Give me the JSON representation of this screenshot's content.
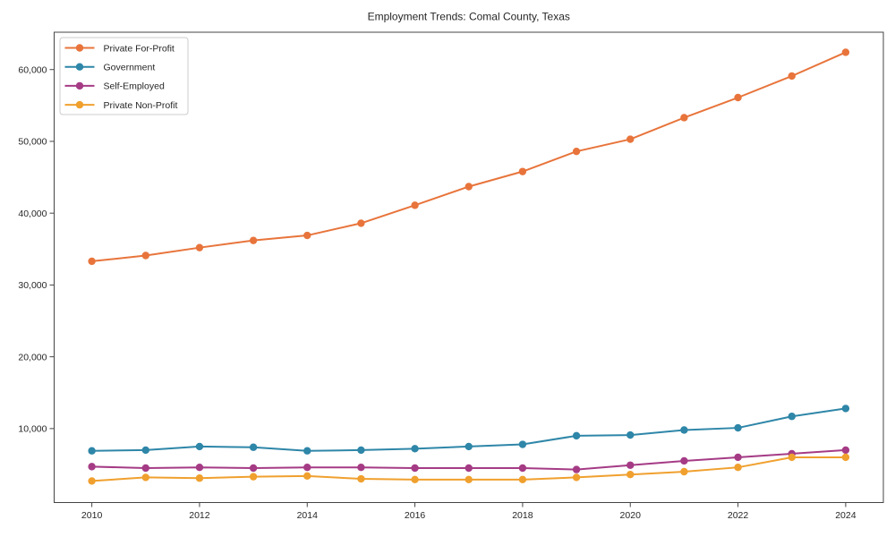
{
  "chart_data": {
    "type": "line",
    "title": "Employment Trends: Comal County, Texas",
    "xlabel": "",
    "ylabel": "",
    "x": [
      2010,
      2011,
      2012,
      2013,
      2014,
      2015,
      2016,
      2017,
      2018,
      2019,
      2020,
      2021,
      2022,
      2023,
      2024
    ],
    "series": [
      {
        "name": "Private For-Profit",
        "color": "#e8743b",
        "values": [
          33300,
          34100,
          35200,
          36200,
          36900,
          38600,
          41100,
          43700,
          45800,
          48600,
          50300,
          53300,
          56100,
          59100,
          62400
        ]
      },
      {
        "name": "Government",
        "color": "#2e86a8",
        "values": [
          6900,
          7000,
          7500,
          7400,
          6900,
          7000,
          7200,
          7500,
          7800,
          9000,
          9100,
          9800,
          10100,
          11700,
          12800
        ]
      },
      {
        "name": "Self-Employed",
        "color": "#a53b85",
        "values": [
          4700,
          4500,
          4600,
          4500,
          4600,
          4600,
          4500,
          4500,
          4500,
          4300,
          4900,
          5500,
          6000,
          6500,
          7000
        ]
      },
      {
        "name": "Private Non-Profit",
        "color": "#f0a02e",
        "values": [
          2700,
          3200,
          3100,
          3300,
          3400,
          3000,
          2900,
          2900,
          2900,
          3200,
          3600,
          4000,
          4600,
          6000,
          6000
        ]
      }
    ],
    "xticks": [
      {
        "value": 2010,
        "label": "2010"
      },
      {
        "value": 2012,
        "label": "2012"
      },
      {
        "value": 2014,
        "label": "2014"
      },
      {
        "value": 2016,
        "label": "2016"
      },
      {
        "value": 2018,
        "label": "2018"
      },
      {
        "value": 2020,
        "label": "2020"
      },
      {
        "value": 2022,
        "label": "2022"
      },
      {
        "value": 2024,
        "label": "2024"
      }
    ],
    "yticks": [
      {
        "value": 10000,
        "label": "10,000"
      },
      {
        "value": 20000,
        "label": "20,000"
      },
      {
        "value": 30000,
        "label": "30,000"
      },
      {
        "value": 40000,
        "label": "40,000"
      },
      {
        "value": 50000,
        "label": "50,000"
      },
      {
        "value": 60000,
        "label": "60,000"
      }
    ],
    "xlim": [
      2009.3,
      2024.7
    ],
    "ylim": [
      -300,
      65200
    ],
    "grid": false,
    "legend_position": "upper-left",
    "spine_color": "#444444",
    "legend_border_color": "#cccccc",
    "legend_background": "#ffffff",
    "text_color": "#262626"
  }
}
